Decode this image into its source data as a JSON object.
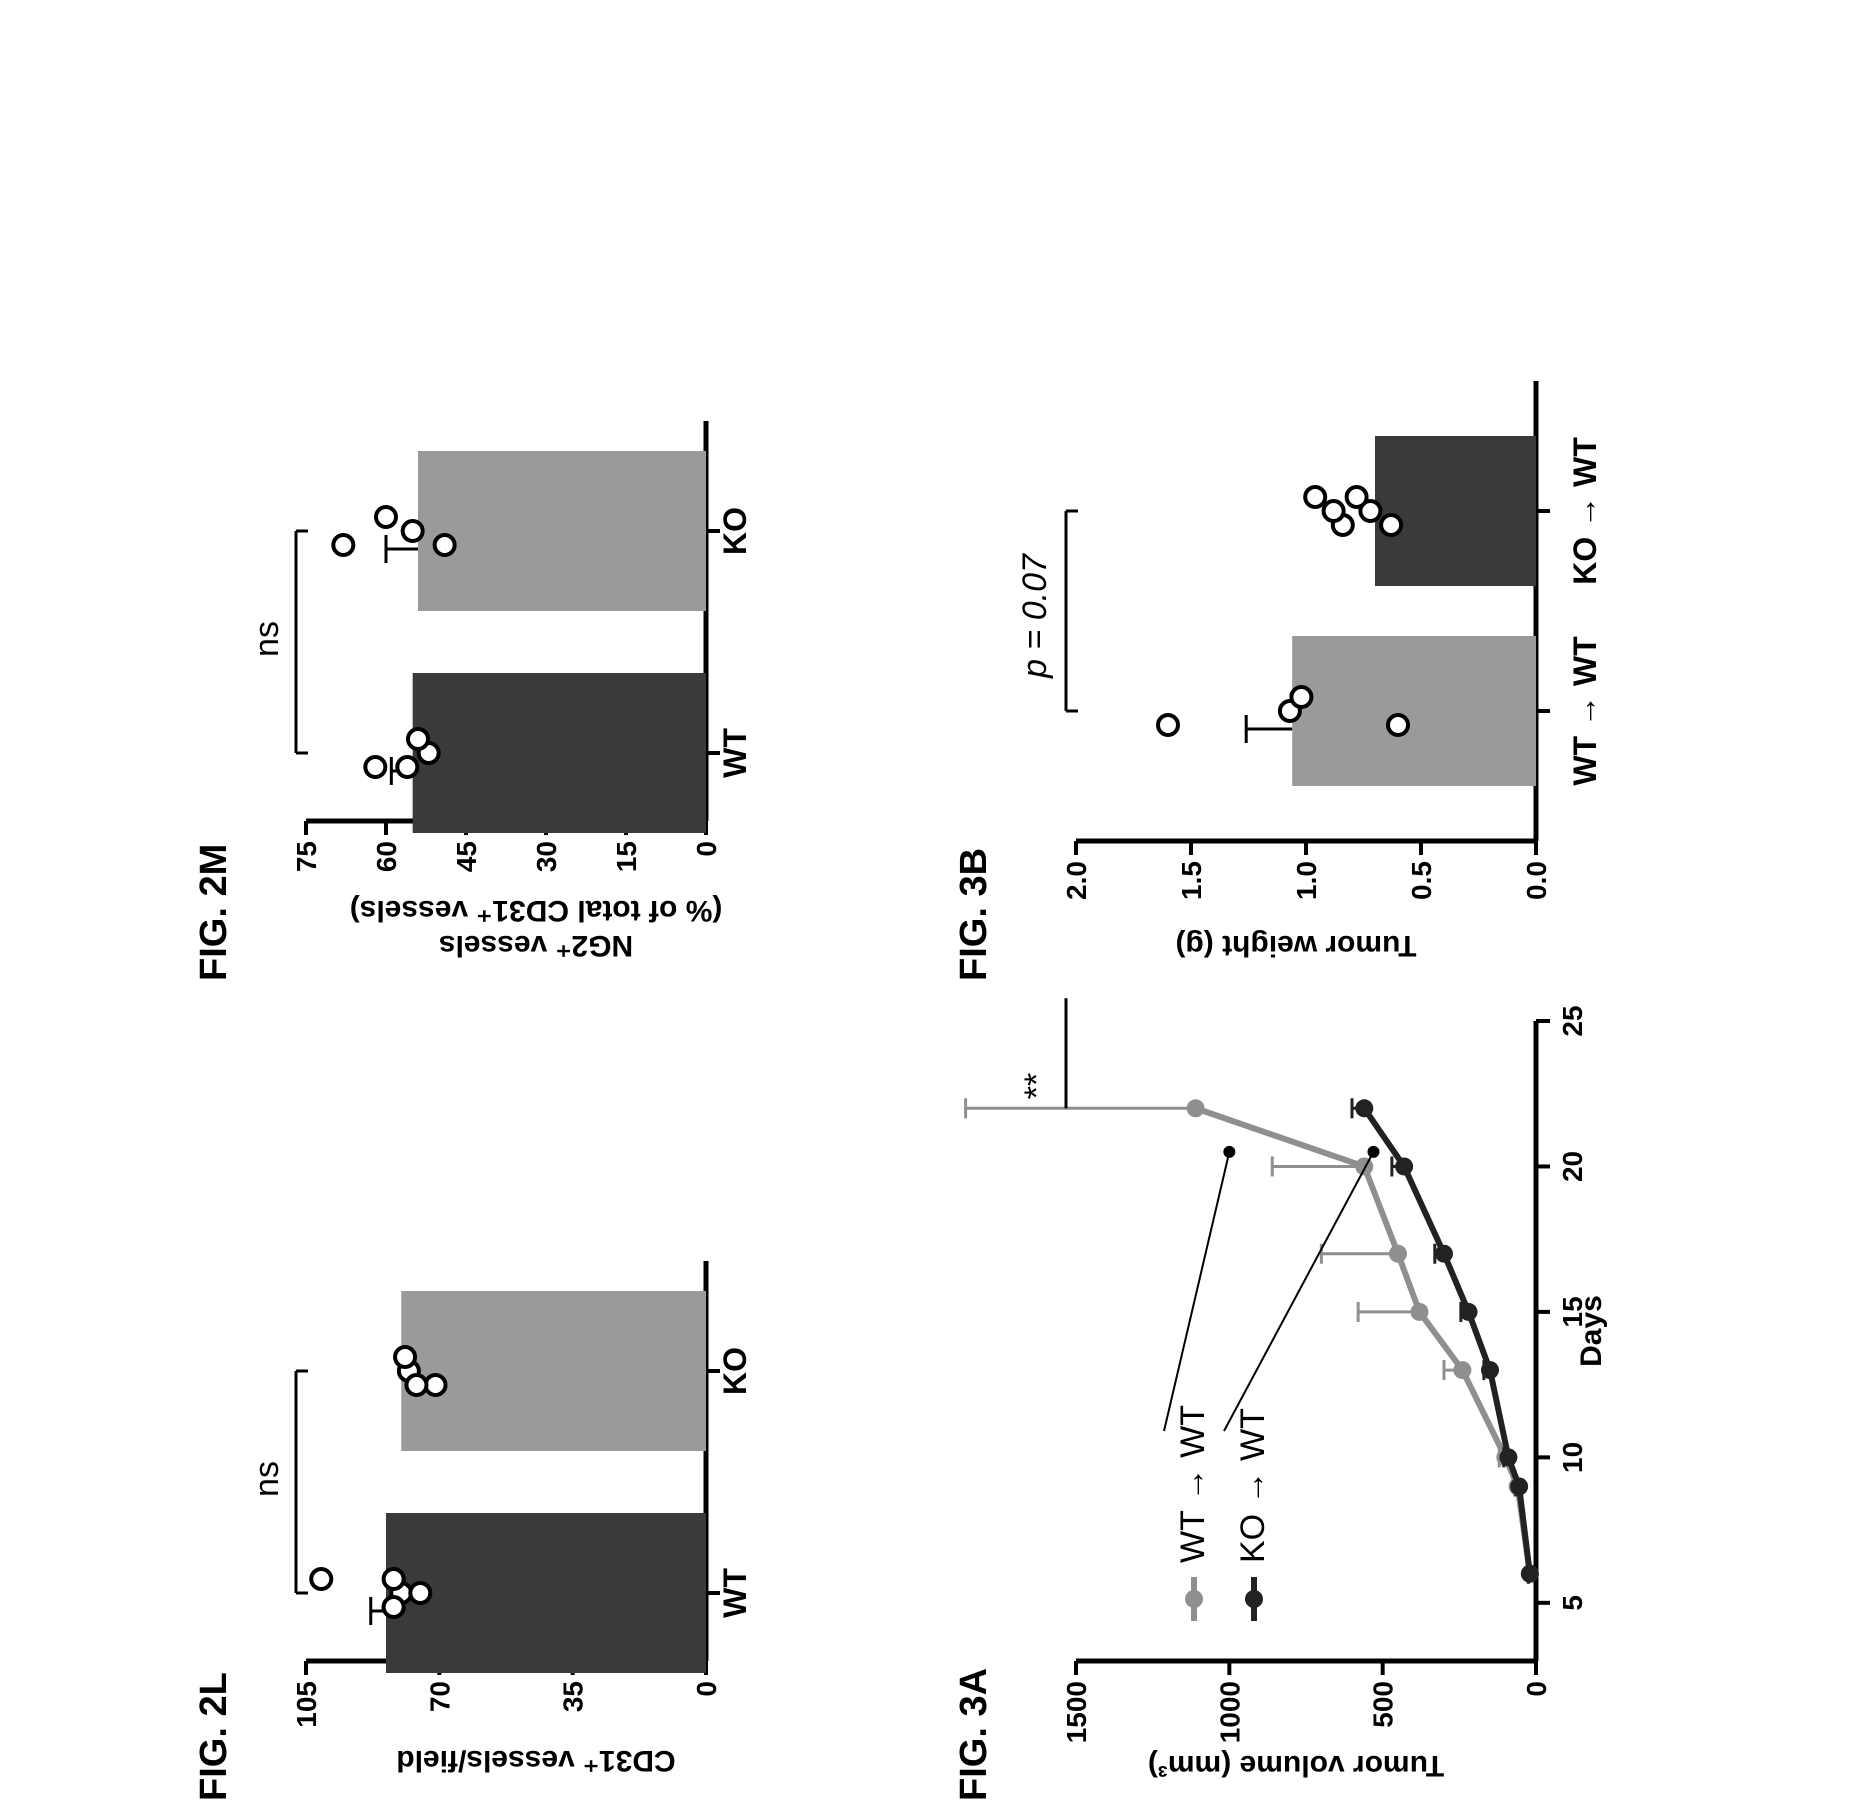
{
  "colors": {
    "wt_bar": "#3a3a3a",
    "ko_bar": "#9a9a9a",
    "wt_line": "#8f8f8f",
    "ko_line": "#222222",
    "axis": "#000000"
  },
  "chart_data": [
    {
      "id": "fig2l",
      "figure_label": "FIG. 2L",
      "type": "bar",
      "categories": [
        "WT",
        "KO"
      ],
      "series": [
        {
          "values": [
            84,
            80
          ]
        }
      ],
      "points": [
        [
          82,
          80,
          82,
          82,
          75,
          101
        ],
        [
          71,
          78,
          79,
          76
        ]
      ],
      "errors": [
        4,
        0
      ],
      "ylabel_main": "CD31⁺ vessels/field",
      "ylim": [
        0,
        105
      ],
      "yticks": [
        "0",
        "35",
        "70",
        "105"
      ],
      "significance": "ns",
      "grid": false
    },
    {
      "id": "fig2m",
      "figure_label": "FIG. 2M",
      "type": "bar",
      "categories": [
        "WT",
        "KO"
      ],
      "series": [
        {
          "values": [
            55,
            54
          ]
        }
      ],
      "points": [
        [
          56,
          52,
          54,
          62
        ],
        [
          49,
          55,
          60,
          68
        ]
      ],
      "errors": [
        4,
        6
      ],
      "ylabel_main": "NG2⁺ vessels",
      "ylabel_sub": "(% of total CD31⁺ vessels)",
      "ylim": [
        0,
        75
      ],
      "yticks": [
        "0",
        "15",
        "30",
        "45",
        "60",
        "75"
      ],
      "significance": "ns",
      "grid": false
    },
    {
      "id": "fig3a",
      "figure_label": "FIG. 3A",
      "type": "line",
      "xlabel": "Days",
      "ylabel_main": "Tumor volume (mm³)",
      "xlim": [
        3,
        25
      ],
      "ylim": [
        0,
        1500
      ],
      "xticks": [
        "5",
        "10",
        "15",
        "20",
        "25"
      ],
      "yticks": [
        "0",
        "500",
        "1000",
        "1500"
      ],
      "series": [
        {
          "name": "WT → WT",
          "x": [
            6,
            9,
            10,
            13,
            15,
            17,
            20,
            22
          ],
          "y": [
            20,
            60,
            100,
            240,
            380,
            450,
            560,
            1110
          ],
          "err": [
            5,
            10,
            20,
            60,
            200,
            250,
            300,
            750
          ]
        },
        {
          "name": "KO → WT",
          "x": [
            6,
            9,
            10,
            13,
            15,
            17,
            20,
            22
          ],
          "y": [
            20,
            55,
            90,
            150,
            220,
            300,
            430,
            560
          ],
          "err": [
            5,
            10,
            15,
            20,
            25,
            30,
            40,
            40
          ]
        }
      ],
      "significance": "**",
      "legend": "upper-left",
      "grid": false
    },
    {
      "id": "fig3b",
      "figure_label": "FIG. 3B",
      "type": "bar",
      "categories": [
        "WT → WT",
        "KO → WT"
      ],
      "series": [
        {
          "values": [
            1.06,
            0.7
          ]
        }
      ],
      "points": [
        [
          0.6,
          1.07,
          1.02,
          1.6
        ],
        [
          0.63,
          0.72,
          0.78,
          0.84,
          0.88,
          0.96
        ]
      ],
      "errors": [
        0.2,
        0
      ],
      "ylabel_main": "Tumor weight (g)",
      "ylim": [
        0,
        2.0
      ],
      "yticks": [
        "0.0",
        "0.5",
        "1.0",
        "1.5",
        "2.0"
      ],
      "significance": "p = 0.07",
      "grid": false
    }
  ]
}
